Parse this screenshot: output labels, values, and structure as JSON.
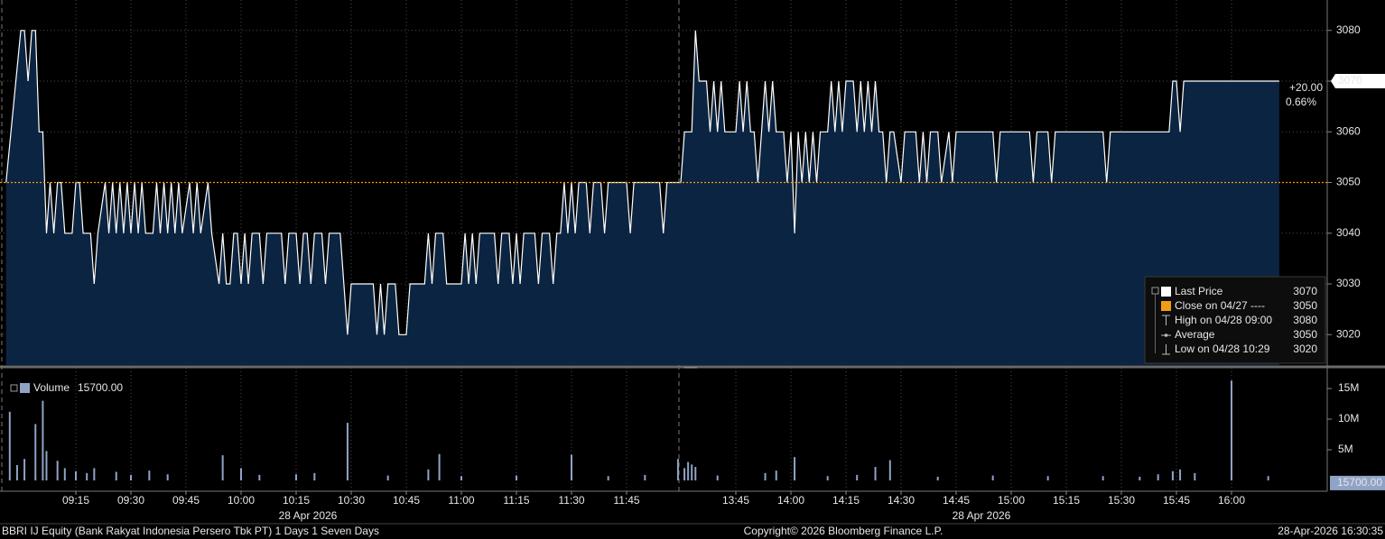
{
  "chart_data": [
    {
      "type": "area",
      "x": [
        "08:56",
        "09:00",
        "09:01",
        "09:02",
        "09:03",
        "09:04",
        "09:05",
        "09:06",
        "09:07",
        "09:08",
        "09:09",
        "09:10",
        "09:11",
        "09:12",
        "09:14",
        "09:15",
        "09:16",
        "09:17",
        "09:19",
        "09:20",
        "09:21",
        "09:23",
        "09:24",
        "09:25",
        "09:26",
        "09:27",
        "09:28",
        "09:29",
        "09:30",
        "09:31",
        "09:32",
        "09:33",
        "09:34",
        "09:36",
        "09:37",
        "09:38",
        "09:39",
        "09:40",
        "09:41",
        "09:42",
        "09:43",
        "09:44",
        "09:46",
        "09:47",
        "09:48",
        "09:49",
        "09:51",
        "09:52",
        "09:54",
        "09:55",
        "09:56",
        "09:57",
        "09:58",
        "09:59",
        "10:00",
        "10:01",
        "10:02",
        "10:03",
        "10:05",
        "10:06",
        "10:07",
        "10:11",
        "10:12",
        "10:13",
        "10:15",
        "10:16",
        "10:17",
        "10:18",
        "10:19",
        "10:20",
        "10:22",
        "10:23",
        "10:24",
        "10:27",
        "10:29",
        "10:30",
        "10:36",
        "10:37",
        "10:38",
        "10:39",
        "10:40",
        "10:42",
        "10:43",
        "10:45",
        "10:46",
        "10:50",
        "10:51",
        "10:52",
        "10:53",
        "10:55",
        "10:56",
        "11:00",
        "11:01",
        "11:02",
        "11:03",
        "11:04",
        "11:05",
        "11:09",
        "11:10",
        "11:11",
        "11:13",
        "11:14",
        "11:15",
        "11:16",
        "11:17",
        "11:20",
        "11:21",
        "11:22",
        "11:24",
        "11:25",
        "11:26",
        "11:27",
        "11:28",
        "11:29",
        "11:30",
        "11:31",
        "11:32",
        "11:34",
        "11:35",
        "11:36",
        "11:38",
        "11:39",
        "11:40",
        "11:45",
        "11:46",
        "11:47",
        "11:54",
        "11:55",
        "11:56",
        "11:59",
        "13:30",
        "13:31",
        "13:33",
        "13:34",
        "13:35",
        "13:37",
        "13:38",
        "13:39",
        "13:40",
        "13:41",
        "13:42",
        "13:45",
        "13:46",
        "13:47",
        "13:48",
        "13:49",
        "13:50",
        "13:51",
        "13:52",
        "13:53",
        "13:54",
        "13:55",
        "13:56",
        "13:58",
        "13:59",
        "14:00",
        "14:01",
        "14:02",
        "14:03",
        "14:04",
        "14:05",
        "14:06",
        "14:07",
        "14:08",
        "14:10",
        "14:11",
        "14:12",
        "14:13",
        "14:14",
        "14:15",
        "14:17",
        "14:18",
        "14:19",
        "14:20",
        "14:21",
        "14:22",
        "14:23",
        "14:24",
        "14:25",
        "14:26",
        "14:27",
        "14:28",
        "14:30",
        "14:31",
        "14:34",
        "14:35",
        "14:36",
        "14:37",
        "14:38",
        "14:40",
        "14:41",
        "14:43",
        "14:44",
        "14:45",
        "14:55",
        "14:56",
        "14:57",
        "15:05",
        "15:06",
        "15:07",
        "15:10",
        "15:11",
        "15:12",
        "15:25",
        "15:26",
        "15:27",
        "15:43",
        "15:44",
        "15:45",
        "15:46",
        "15:47",
        "16:13"
      ],
      "series": [
        {
          "name": "Last Price",
          "color": "#ffffff",
          "fill": "#0b2441",
          "values": [
            3050,
            3080,
            3080,
            3070,
            3080,
            3080,
            3060,
            3060,
            3040,
            3050,
            3040,
            3050,
            3050,
            3040,
            3040,
            3050,
            3050,
            3040,
            3040,
            3030,
            3040,
            3050,
            3040,
            3050,
            3040,
            3050,
            3040,
            3050,
            3040,
            3050,
            3040,
            3050,
            3040,
            3040,
            3050,
            3040,
            3050,
            3040,
            3050,
            3040,
            3050,
            3040,
            3050,
            3040,
            3050,
            3040,
            3050,
            3040,
            3030,
            3040,
            3030,
            3030,
            3040,
            3040,
            3030,
            3040,
            3030,
            3040,
            3040,
            3030,
            3040,
            3040,
            3030,
            3040,
            3040,
            3030,
            3040,
            3040,
            3030,
            3040,
            3040,
            3030,
            3040,
            3040,
            3020,
            3030,
            3030,
            3020,
            3030,
            3020,
            3030,
            3030,
            3020,
            3020,
            3030,
            3030,
            3040,
            3030,
            3040,
            3040,
            3030,
            3030,
            3040,
            3030,
            3040,
            3030,
            3040,
            3040,
            3030,
            3040,
            3040,
            3030,
            3040,
            3030,
            3040,
            3040,
            3030,
            3040,
            3040,
            3030,
            3040,
            3040,
            3050,
            3040,
            3050,
            3040,
            3050,
            3050,
            3040,
            3050,
            3050,
            3040,
            3050,
            3050,
            3040,
            3050,
            3050,
            3040,
            3050,
            3050,
            3050,
            3060,
            3060,
            3080,
            3070,
            3070,
            3060,
            3070,
            3060,
            3070,
            3060,
            3060,
            3070,
            3060,
            3070,
            3060,
            3060,
            3050,
            3060,
            3070,
            3060,
            3070,
            3060,
            3060,
            3050,
            3060,
            3040,
            3060,
            3050,
            3060,
            3050,
            3060,
            3050,
            3060,
            3060,
            3070,
            3060,
            3070,
            3060,
            3070,
            3070,
            3060,
            3070,
            3060,
            3070,
            3060,
            3070,
            3060,
            3060,
            3050,
            3060,
            3060,
            3050,
            3060,
            3060,
            3050,
            3060,
            3050,
            3060,
            3060,
            3050,
            3060,
            3050,
            3060,
            3060,
            3050,
            3060,
            3060,
            3050,
            3060,
            3060,
            3050,
            3060,
            3060,
            3050,
            3060,
            3060,
            3070,
            3070,
            3060,
            3070,
            3070
          ]
        }
      ],
      "ylim": [
        3014,
        3086
      ],
      "yticks": [
        3020,
        3030,
        3040,
        3050,
        3060,
        3070,
        3080
      ],
      "xticks": [
        "09:15",
        "09:30",
        "09:45",
        "10:00",
        "10:15",
        "10:30",
        "10:45",
        "11:00",
        "11:15",
        "11:30",
        "11:45",
        "13:45",
        "14:00",
        "14:15",
        "14:30",
        "14:45",
        "15:00",
        "15:15",
        "15:30",
        "15:45",
        "16:00"
      ],
      "date_label": "28 Apr 2026",
      "grid": true,
      "close_line": {
        "value": 3050,
        "color": "#f39c12"
      },
      "last_price": 3070,
      "change": "+20.00",
      "change_pct": "0.66%",
      "legend_stats": [
        {
          "label": "Close on 04/27 ----",
          "value": 3050
        },
        {
          "label": "High on 04/28 09:00",
          "value": 3080
        },
        {
          "label": "Average",
          "value": 3050
        },
        {
          "label": "Low on 04/28 10:29",
          "value": 3020
        }
      ]
    },
    {
      "type": "bar",
      "x": [
        "08:57",
        "08:59",
        "09:01",
        "09:04",
        "09:06",
        "09:07",
        "09:10",
        "09:12",
        "09:15",
        "09:18",
        "09:20",
        "09:26",
        "09:30",
        "09:35",
        "09:40",
        "09:55",
        "10:00",
        "10:05",
        "10:15",
        "10:20",
        "10:29",
        "10:40",
        "10:51",
        "10:54",
        "11:00",
        "11:15",
        "11:30",
        "11:40",
        "11:50",
        "11:59",
        "13:31",
        "13:32",
        "13:33",
        "13:34",
        "13:40",
        "13:53",
        "13:56",
        "14:01",
        "14:10",
        "14:18",
        "14:23",
        "14:27",
        "14:40",
        "14:55",
        "15:10",
        "15:25",
        "15:35",
        "15:40",
        "15:44",
        "15:46",
        "15:50",
        "16:00",
        "16:10"
      ],
      "series": [
        {
          "name": "Volume",
          "color": "#8fa3c6",
          "values": [
            11200000,
            2500000,
            3500000,
            9200000,
            13000000,
            4800000,
            3200000,
            2000000,
            1500000,
            1200000,
            2000000,
            1400000,
            900000,
            1600000,
            1000000,
            4100000,
            2000000,
            900000,
            1000000,
            1200000,
            9400000,
            800000,
            1800000,
            4300000,
            700000,
            800000,
            4200000,
            700000,
            900000,
            3500000,
            2000000,
            3000000,
            2600000,
            2200000,
            800000,
            1200000,
            1600000,
            3800000,
            700000,
            900000,
            2200000,
            3300000,
            600000,
            800000,
            700000,
            700000,
            600000,
            1000000,
            1500000,
            1800000,
            1200000,
            16300000,
            700000
          ]
        }
      ],
      "ylim": [
        0,
        17800000
      ],
      "yticks": [
        {
          "value": 5000000,
          "label": "5M"
        },
        {
          "value": 10000000,
          "label": "10M"
        },
        {
          "value": 15000000,
          "label": "15M"
        }
      ],
      "last_value": {
        "value": 15700,
        "label": "15700.00"
      }
    }
  ],
  "footer": {
    "security": "BBRI IJ Equity (Bank Rakyat Indonesia Persero Tbk PT) 1 Days 1 Seven Days",
    "copyright": "Copyright© 2026 Bloomberg Finance L.P.",
    "timestamp": "28-Apr-2026 16:30:35"
  }
}
